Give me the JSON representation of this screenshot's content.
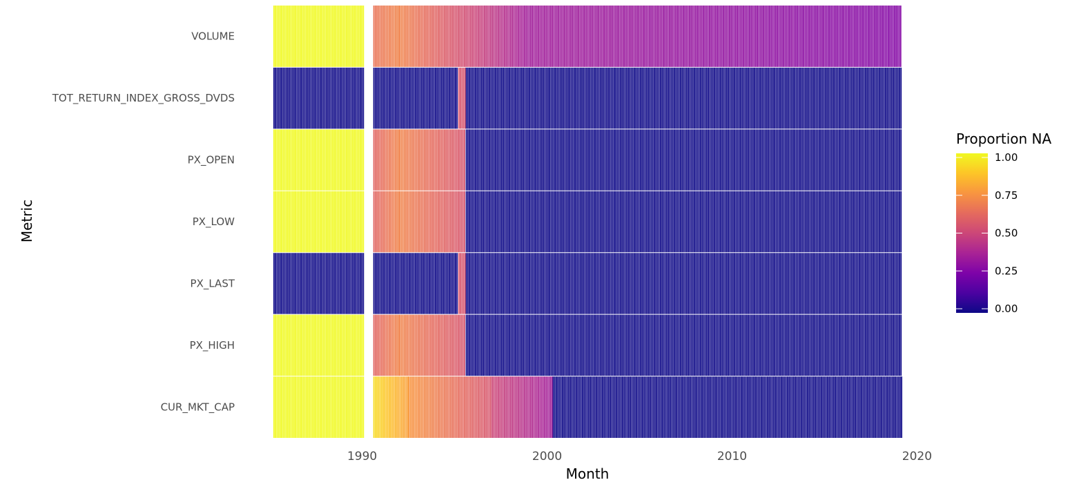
{
  "chart_data": {
    "type": "heatmap",
    "xlabel": "Month",
    "ylabel": "Metric",
    "x_range": [
      1985.2,
      2019.2
    ],
    "x_ticks": [
      1990,
      2000,
      2010,
      2020
    ],
    "x_tick_labels": [
      "1990",
      "2000",
      "2010",
      "2020"
    ],
    "metrics": [
      "VOLUME",
      "TOT_RETURN_INDEX_GROSS_DVDS",
      "PX_OPEN",
      "PX_LOW",
      "PX_LAST",
      "PX_HIGH",
      "CUR_MKT_CAP"
    ],
    "missing_months_span": [
      1990.1,
      1990.6
    ],
    "grid": false,
    "legend": {
      "title": "Proportion NA",
      "position": "right",
      "ticks": [
        0.0,
        0.25,
        0.5,
        0.75,
        1.0
      ],
      "tick_labels": [
        "0.00",
        "0.25",
        "0.50",
        "0.75",
        "1.00"
      ],
      "colormap": "plasma"
    },
    "series": [
      {
        "metric": "VOLUME",
        "segments": [
          {
            "start": 1985.2,
            "end": 1990.1,
            "from": 1.0,
            "to": 1.0
          },
          {
            "start": 1990.6,
            "end": 1992.0,
            "from": 0.65,
            "to": 0.7
          },
          {
            "start": 1992.0,
            "end": 1995.0,
            "from": 0.7,
            "to": 0.55
          },
          {
            "start": 1995.0,
            "end": 1999.0,
            "from": 0.55,
            "to": 0.35
          },
          {
            "start": 1999.0,
            "end": 2019.2,
            "from": 0.35,
            "to": 0.27
          }
        ]
      },
      {
        "metric": "TOT_RETURN_INDEX_GROSS_DVDS",
        "segments": [
          {
            "start": 1985.2,
            "end": 1990.1,
            "from": 0.0,
            "to": 0.0
          },
          {
            "start": 1990.6,
            "end": 1995.2,
            "from": 0.0,
            "to": 0.0
          },
          {
            "start": 1995.2,
            "end": 1995.6,
            "from": 0.55,
            "to": 0.55
          },
          {
            "start": 1995.6,
            "end": 2019.2,
            "from": 0.0,
            "to": 0.0
          }
        ]
      },
      {
        "metric": "PX_OPEN",
        "segments": [
          {
            "start": 1985.2,
            "end": 1990.1,
            "from": 1.0,
            "to": 1.0
          },
          {
            "start": 1990.6,
            "end": 1992.0,
            "from": 0.6,
            "to": 0.7
          },
          {
            "start": 1992.0,
            "end": 1995.6,
            "from": 0.7,
            "to": 0.55
          },
          {
            "start": 1995.6,
            "end": 2019.2,
            "from": 0.0,
            "to": 0.0
          }
        ]
      },
      {
        "metric": "PX_LOW",
        "segments": [
          {
            "start": 1985.2,
            "end": 1990.1,
            "from": 1.0,
            "to": 1.0
          },
          {
            "start": 1990.6,
            "end": 1992.0,
            "from": 0.6,
            "to": 0.7
          },
          {
            "start": 1992.0,
            "end": 1995.6,
            "from": 0.7,
            "to": 0.55
          },
          {
            "start": 1995.6,
            "end": 2019.2,
            "from": 0.0,
            "to": 0.0
          }
        ]
      },
      {
        "metric": "PX_LAST",
        "segments": [
          {
            "start": 1985.2,
            "end": 1990.1,
            "from": 0.0,
            "to": 0.0
          },
          {
            "start": 1990.6,
            "end": 1995.2,
            "from": 0.0,
            "to": 0.0
          },
          {
            "start": 1995.2,
            "end": 1995.6,
            "from": 0.55,
            "to": 0.55
          },
          {
            "start": 1995.6,
            "end": 2019.2,
            "from": 0.0,
            "to": 0.0
          }
        ]
      },
      {
        "metric": "PX_HIGH",
        "segments": [
          {
            "start": 1985.2,
            "end": 1990.1,
            "from": 1.0,
            "to": 1.0
          },
          {
            "start": 1990.6,
            "end": 1992.0,
            "from": 0.6,
            "to": 0.7
          },
          {
            "start": 1992.0,
            "end": 1995.6,
            "from": 0.7,
            "to": 0.55
          },
          {
            "start": 1995.6,
            "end": 2019.2,
            "from": 0.0,
            "to": 0.0
          }
        ]
      },
      {
        "metric": "CUR_MKT_CAP",
        "segments": [
          {
            "start": 1985.2,
            "end": 1990.1,
            "from": 1.0,
            "to": 1.0
          },
          {
            "start": 1990.6,
            "end": 1992.5,
            "from": 0.93,
            "to": 0.78
          },
          {
            "start": 1992.5,
            "end": 1997.0,
            "from": 0.75,
            "to": 0.55
          },
          {
            "start": 1997.0,
            "end": 2000.3,
            "from": 0.5,
            "to": 0.35
          },
          {
            "start": 2000.3,
            "end": 2019.2,
            "from": 0.0,
            "to": 0.0
          }
        ]
      }
    ]
  }
}
